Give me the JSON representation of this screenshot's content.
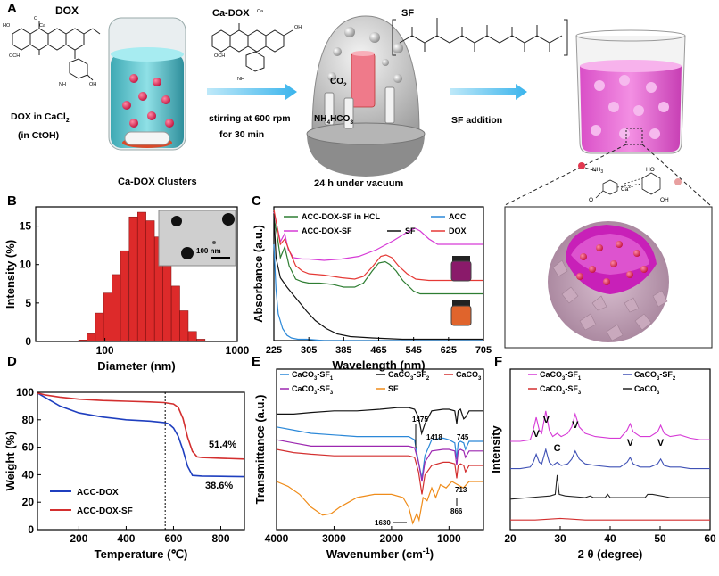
{
  "panels": {
    "a": "A",
    "b": "B",
    "c": "C",
    "d": "D",
    "e": "E",
    "f": "F"
  },
  "scheme": {
    "dox": "DOX",
    "dox_in_cacl2": "DOX in CaCl",
    "sub2": "2",
    "in_ctoh": "(in CtOH)",
    "ca_dox": "Ca-DOX",
    "stirring": "stirring at 600 rpm",
    "for_30": "for 30 min",
    "co2": "CO",
    "nh4": "NH",
    "hco3": "HCO",
    "sub3": "3",
    "sub4": "4",
    "sf": "SF",
    "sf_addition": "SF addition",
    "clusters": "Ca-DOX Clusters",
    "vacuum": "24 h under vacuum",
    "nh3": "NH",
    "ca2": "Ca",
    "charge": "2+",
    "o": "O",
    "oh": "OH",
    "ho": "HO",
    "och3": "OCH",
    "oh_mol": "OH",
    "nh2": "NH",
    "o_mol": "O",
    "ca_mol": "Ca"
  },
  "chart_data": [
    {
      "id": "B",
      "type": "bar",
      "xlabel": "Diameter (nm)",
      "ylabel": "Intensity (%)",
      "xscale": "log",
      "xlim": [
        30,
        1000
      ],
      "ylim": [
        0,
        17.5
      ],
      "xticks": [
        "100",
        "1000"
      ],
      "yticks": [
        "0",
        "5",
        "10",
        "15"
      ],
      "inset_label": "100 nm",
      "bar_color": "#dd2a2a",
      "x": [
        68,
        79,
        91,
        105,
        122,
        141,
        164,
        190,
        220,
        255,
        295,
        342,
        396,
        458,
        531
      ],
      "values": [
        0.2,
        1.0,
        3.7,
        6.3,
        8.7,
        11.8,
        16.2,
        16.8,
        15.7,
        13.6,
        10.8,
        7.2,
        4.0,
        1.3,
        0.3
      ]
    },
    {
      "id": "C",
      "type": "line",
      "xlabel": "Wavelength (nm)",
      "ylabel": "Absorbance (a.u.)",
      "xlim": [
        225,
        705
      ],
      "ylim": [
        0,
        1
      ],
      "xticks": [
        "225",
        "305",
        "385",
        "465",
        "545",
        "625",
        "705"
      ],
      "series": [
        {
          "name": "ACC-DOX-SF in HCL",
          "color": "#2e7d32",
          "x": [
            225,
            232,
            240,
            250,
            260,
            275,
            290,
            305,
            330,
            360,
            385,
            410,
            430,
            450,
            465,
            480,
            490,
            505,
            520,
            545,
            560,
            600,
            650,
            705
          ],
          "y": [
            0.92,
            0.8,
            0.62,
            0.7,
            0.56,
            0.46,
            0.44,
            0.43,
            0.43,
            0.42,
            0.4,
            0.4,
            0.43,
            0.52,
            0.58,
            0.59,
            0.57,
            0.52,
            0.45,
            0.37,
            0.35,
            0.35,
            0.35,
            0.35
          ]
        },
        {
          "name": "ACC-DOX-SF",
          "color": "#d63ad6",
          "x": [
            225,
            232,
            240,
            250,
            258,
            270,
            290,
            305,
            340,
            380,
            420,
            460,
            500,
            530,
            548,
            560,
            580,
            600,
            640,
            705
          ],
          "y": [
            0.96,
            0.86,
            0.74,
            0.8,
            0.68,
            0.62,
            0.61,
            0.61,
            0.6,
            0.61,
            0.63,
            0.68,
            0.75,
            0.81,
            0.84,
            0.82,
            0.76,
            0.72,
            0.72,
            0.72
          ]
        },
        {
          "name": "SF",
          "color": "#111111",
          "x": [
            225,
            230,
            240,
            255,
            270,
            285,
            300,
            320,
            345,
            370,
            400,
            450,
            520,
            600,
            705
          ],
          "y": [
            0.95,
            0.62,
            0.47,
            0.4,
            0.34,
            0.28,
            0.22,
            0.15,
            0.09,
            0.05,
            0.03,
            0.02,
            0.01,
            0.01,
            0.01
          ]
        },
        {
          "name": "ACC",
          "color": "#2b88d8",
          "x": [
            225,
            230,
            235,
            245,
            255,
            265,
            280,
            300,
            340,
            400,
            500,
            705
          ],
          "y": [
            0.72,
            0.38,
            0.2,
            0.09,
            0.04,
            0.02,
            0.01,
            0.01,
            0.0,
            0.0,
            0.0,
            0.0
          ]
        },
        {
          "name": "DOX",
          "color": "#e53935",
          "x": [
            225,
            232,
            240,
            250,
            262,
            275,
            290,
            305,
            340,
            380,
            410,
            430,
            450,
            470,
            482,
            495,
            510,
            530,
            550,
            580,
            640,
            705
          ],
          "y": [
            0.98,
            0.86,
            0.72,
            0.76,
            0.66,
            0.56,
            0.52,
            0.5,
            0.49,
            0.47,
            0.46,
            0.48,
            0.55,
            0.63,
            0.64,
            0.62,
            0.56,
            0.5,
            0.46,
            0.45,
            0.45,
            0.45
          ]
        }
      ]
    },
    {
      "id": "D",
      "type": "line",
      "xlabel": "Temperature (℃)",
      "ylabel": "Weight (%)",
      "xlim": [
        25,
        900
      ],
      "ylim": [
        0,
        100
      ],
      "xticks": [
        "200",
        "400",
        "600",
        "800"
      ],
      "yticks": [
        "0",
        "20",
        "40",
        "60",
        "80",
        "100"
      ],
      "annotations": [
        "51.4%",
        "38.6%"
      ],
      "series": [
        {
          "name": "ACC-DOX",
          "color": "#1f3fbf",
          "x": [
            25,
            60,
            120,
            200,
            300,
            400,
            500,
            560,
            580,
            600,
            620,
            640,
            660,
            680,
            720,
            800,
            900
          ],
          "y": [
            99.5,
            96,
            90,
            85,
            82,
            80,
            79,
            78,
            77,
            74,
            68,
            58,
            46,
            39.5,
            39,
            38.8,
            38.6
          ]
        },
        {
          "name": "ACC-DOX-SF",
          "color": "#d32f2f",
          "x": [
            25,
            60,
            120,
            200,
            300,
            400,
            500,
            560,
            600,
            620,
            640,
            660,
            680,
            700,
            720,
            800,
            900
          ],
          "y": [
            99.5,
            98,
            96.5,
            95,
            94,
            93.5,
            93,
            92.5,
            91.5,
            89,
            81,
            67,
            57,
            53,
            52.5,
            52,
            51.4
          ]
        }
      ]
    },
    {
      "id": "E",
      "type": "line",
      "xlabel": "Wavenumber (cm",
      "xlabel_sup": "-1",
      "xlabel_end": ")",
      "ylabel": "Transmittance (a.u.)",
      "xlim": [
        4000,
        400
      ],
      "ylim": [
        0,
        1
      ],
      "xticks": [
        "4000",
        "3000",
        "2000",
        "1000"
      ],
      "annotations": [
        "1475",
        "1418",
        "745",
        "713",
        "866",
        "1630"
      ],
      "series": [
        {
          "name": "CaCO3-SF1",
          "color": "#2b88d8",
          "x": [
            4000,
            3700,
            3400,
            3000,
            2600,
            2200,
            1900,
            1700,
            1600,
            1530,
            1470,
            1420,
            1300,
            1100,
            1000,
            900,
            866,
            840,
            800,
            745,
            713,
            650,
            500,
            400
          ],
          "y": [
            0.64,
            0.62,
            0.6,
            0.59,
            0.58,
            0.58,
            0.58,
            0.58,
            0.56,
            0.42,
            0.32,
            0.46,
            0.56,
            0.57,
            0.56,
            0.54,
            0.44,
            0.54,
            0.55,
            0.54,
            0.5,
            0.55,
            0.55,
            0.55
          ]
        },
        {
          "name": "CaCO3-SF2",
          "color": "#111111",
          "x": [
            4000,
            3700,
            3400,
            3000,
            2600,
            2200,
            1900,
            1700,
            1600,
            1530,
            1475,
            1418,
            1300,
            1100,
            1000,
            900,
            866,
            840,
            800,
            745,
            713,
            650,
            500,
            400
          ],
          "y": [
            0.72,
            0.72,
            0.73,
            0.74,
            0.74,
            0.75,
            0.76,
            0.76,
            0.75,
            0.7,
            0.6,
            0.66,
            0.74,
            0.75,
            0.75,
            0.74,
            0.66,
            0.74,
            0.75,
            0.69,
            0.7,
            0.74,
            0.74,
            0.74
          ]
        },
        {
          "name": "CaCO3",
          "color": "#d32f2f",
          "x": [
            4000,
            3700,
            3400,
            3000,
            2600,
            2200,
            1900,
            1700,
            1600,
            1530,
            1470,
            1420,
            1300,
            1100,
            1000,
            900,
            866,
            840,
            800,
            745,
            713,
            650,
            500,
            400
          ],
          "y": [
            0.5,
            0.48,
            0.47,
            0.46,
            0.46,
            0.46,
            0.46,
            0.46,
            0.45,
            0.36,
            0.22,
            0.34,
            0.4,
            0.42,
            0.42,
            0.41,
            0.32,
            0.4,
            0.41,
            0.4,
            0.36,
            0.4,
            0.4,
            0.4
          ]
        },
        {
          "name": "CaCO3-SF3",
          "color": "#9c27b0",
          "x": [
            4000,
            3700,
            3400,
            3000,
            2600,
            2200,
            1900,
            1700,
            1600,
            1530,
            1470,
            1420,
            1300,
            1100,
            1000,
            900,
            866,
            840,
            800,
            745,
            713,
            650,
            500,
            400
          ],
          "y": [
            0.56,
            0.54,
            0.52,
            0.52,
            0.52,
            0.52,
            0.52,
            0.52,
            0.51,
            0.42,
            0.3,
            0.42,
            0.49,
            0.5,
            0.5,
            0.49,
            0.4,
            0.49,
            0.5,
            0.49,
            0.45,
            0.49,
            0.49,
            0.49
          ]
        },
        {
          "name": "SF",
          "color": "#ef8c1a",
          "x": [
            4000,
            3800,
            3600,
            3400,
            3200,
            3050,
            2900,
            2600,
            2300,
            2000,
            1800,
            1700,
            1630,
            1560,
            1520,
            1450,
            1380,
            1300,
            1230,
            1150,
            1050,
            950,
            850,
            750,
            650,
            500,
            400
          ],
          "y": [
            0.3,
            0.27,
            0.22,
            0.14,
            0.09,
            0.1,
            0.14,
            0.2,
            0.22,
            0.22,
            0.2,
            0.14,
            0.04,
            0.1,
            0.06,
            0.2,
            0.18,
            0.26,
            0.2,
            0.28,
            0.26,
            0.3,
            0.28,
            0.26,
            0.3,
            0.3,
            0.3
          ]
        }
      ]
    },
    {
      "id": "F",
      "type": "line",
      "xlabel": "2 θ (degree)",
      "ylabel": "Intensity",
      "xlim": [
        20,
        60
      ],
      "ylim": [
        0,
        1
      ],
      "xticks": [
        "20",
        "30",
        "40",
        "50",
        "60"
      ],
      "annotations": [
        "V",
        "V",
        "C",
        "V",
        "V",
        "V"
      ],
      "series": [
        {
          "name": "CaCO3-SF1",
          "color": "#d63ad6",
          "x": [
            20,
            22,
            24,
            24.6,
            25.2,
            25.8,
            26.3,
            27.1,
            27.8,
            28.5,
            29.4,
            30.2,
            31.5,
            32.3,
            33,
            33.8,
            35,
            37,
            40,
            42,
            43.4,
            44,
            44.6,
            46,
            48,
            49.5,
            50.1,
            50.8,
            52,
            54,
            56,
            58,
            60
          ],
          "y": [
            0.55,
            0.55,
            0.56,
            0.62,
            0.7,
            0.62,
            0.6,
            0.74,
            0.62,
            0.58,
            0.6,
            0.58,
            0.6,
            0.64,
            0.72,
            0.64,
            0.6,
            0.58,
            0.57,
            0.57,
            0.62,
            0.66,
            0.61,
            0.58,
            0.58,
            0.61,
            0.65,
            0.6,
            0.58,
            0.59,
            0.57,
            0.56,
            0.56
          ]
        },
        {
          "name": "CaCO3-SF2",
          "color": "#3f51b5",
          "x": [
            20,
            22,
            24,
            24.6,
            25.2,
            25.8,
            26.3,
            27.1,
            27.8,
            28.5,
            29.4,
            30.2,
            31.5,
            32.3,
            33,
            33.8,
            35,
            37,
            40,
            42,
            43.4,
            44,
            44.6,
            46,
            48,
            49.5,
            50.1,
            50.8,
            52,
            54,
            56,
            58,
            60
          ],
          "y": [
            0.38,
            0.38,
            0.39,
            0.42,
            0.47,
            0.42,
            0.41,
            0.5,
            0.42,
            0.4,
            0.42,
            0.4,
            0.41,
            0.44,
            0.49,
            0.44,
            0.41,
            0.4,
            0.39,
            0.39,
            0.42,
            0.45,
            0.41,
            0.39,
            0.39,
            0.41,
            0.44,
            0.4,
            0.39,
            0.39,
            0.38,
            0.38,
            0.38
          ]
        },
        {
          "name": "CaCO3-SF3",
          "color": "#d32f2f",
          "x": [
            20,
            25,
            30,
            35,
            40,
            45,
            50,
            55,
            60
          ],
          "y": [
            0.06,
            0.06,
            0.07,
            0.06,
            0.06,
            0.06,
            0.06,
            0.06,
            0.06
          ]
        },
        {
          "name": "CaCO3",
          "color": "#222222",
          "x": [
            20,
            24,
            28,
            29,
            29.4,
            29.8,
            31,
            35,
            36,
            36.6,
            37.5,
            39,
            39.5,
            40,
            43,
            47,
            47.5,
            48.5,
            52,
            60
          ],
          "y": [
            0.19,
            0.2,
            0.21,
            0.22,
            0.34,
            0.22,
            0.21,
            0.2,
            0.21,
            0.2,
            0.2,
            0.2,
            0.22,
            0.2,
            0.2,
            0.2,
            0.22,
            0.22,
            0.2,
            0.2
          ]
        }
      ]
    }
  ]
}
